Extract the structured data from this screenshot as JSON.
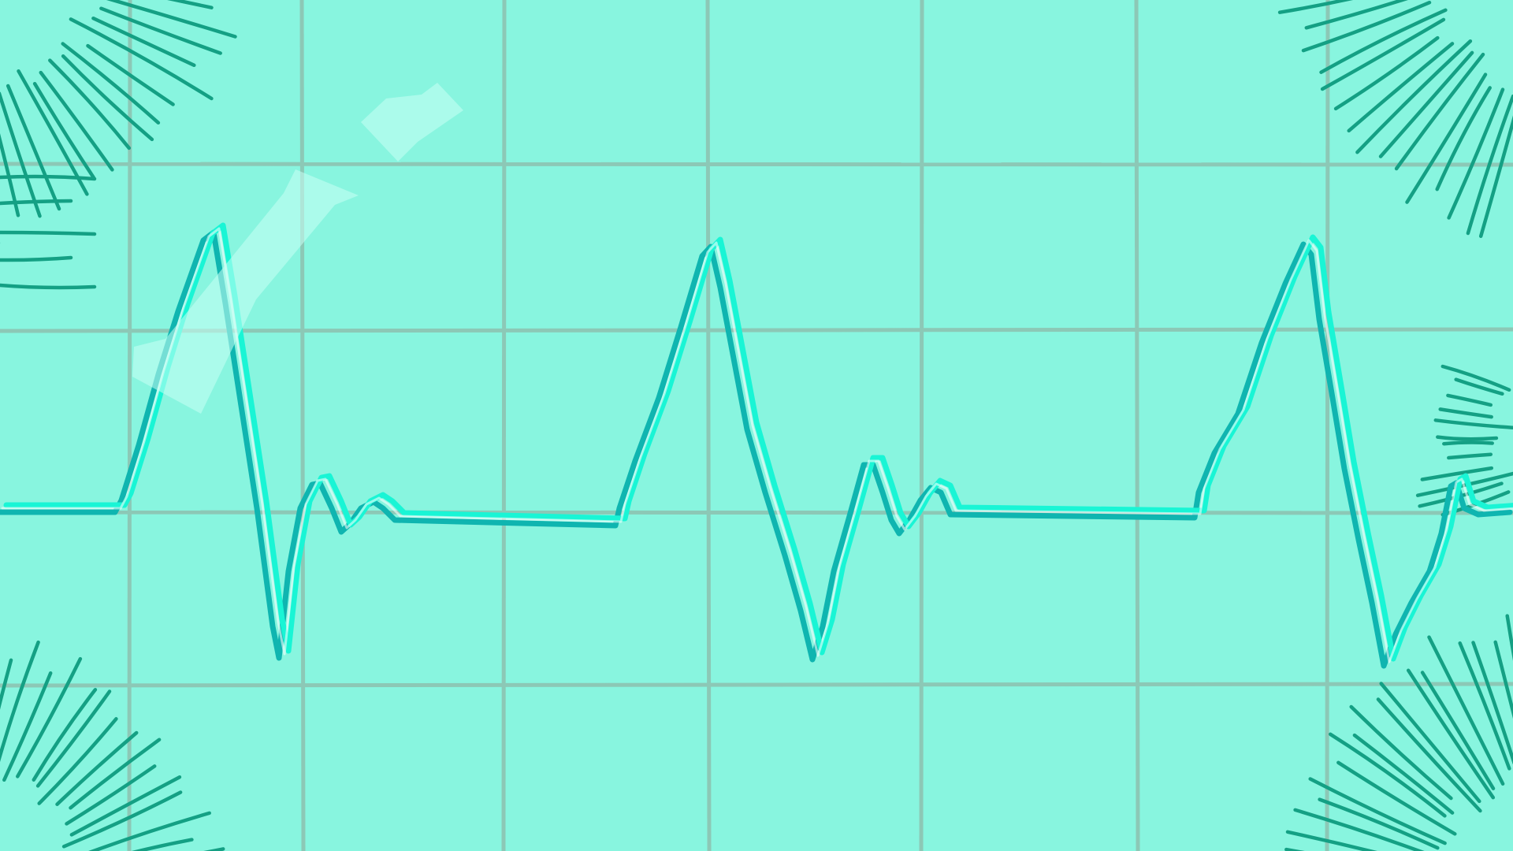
{
  "scene": {
    "subject": "heartbeat-waveform",
    "grid": true,
    "decorations": [
      "corner-hatching",
      "tape-strips"
    ]
  },
  "colors": {
    "background": "#88f5df",
    "grid": "#8cc8b6",
    "trace_back": "#0fb5b0",
    "trace_front": "#19f5d5",
    "hatch": "#14a084",
    "tape": "#c8fff4"
  }
}
